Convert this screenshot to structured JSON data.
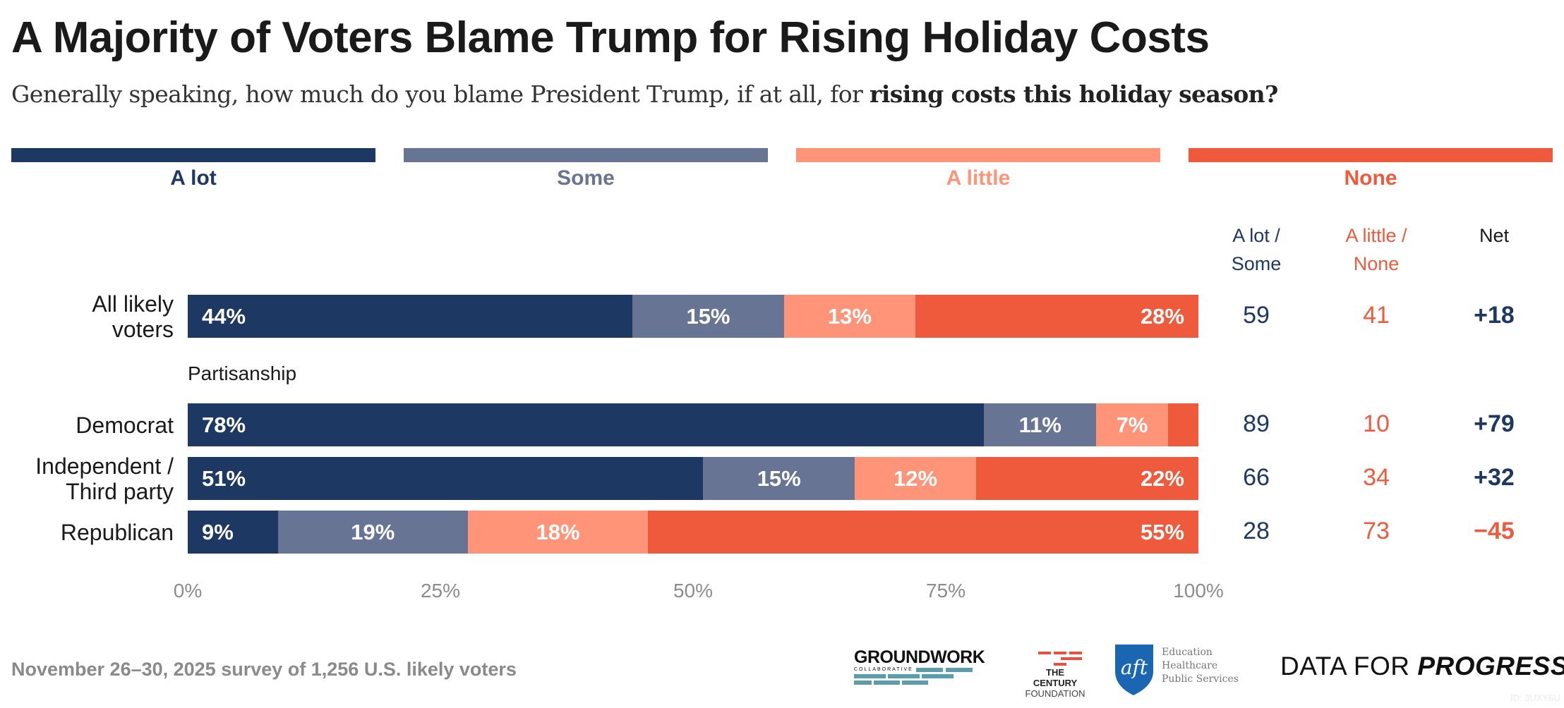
{
  "title": "A Majority of Voters Blame Trump for Rising Holiday Costs",
  "subtitle": {
    "plain": "Generally speaking, how much do you blame President Trump, if at all, for ",
    "bold": "rising costs this holiday season?"
  },
  "colors": {
    "a_lot": "#1e3864",
    "some": "#687494",
    "a_little": "#ff9478",
    "none": "#f05a3c",
    "net_positive": "#1e3864",
    "net_negative": "#f05a3c"
  },
  "legend": [
    {
      "label": "A lot",
      "color": "#1e3864"
    },
    {
      "label": "Some",
      "color": "#687494"
    },
    {
      "label": "A little",
      "color": "#ff9478"
    },
    {
      "label": "None",
      "color": "#f05a3c"
    }
  ],
  "column_headers": {
    "blame": {
      "line1": "A lot /",
      "line2": "Some"
    },
    "no_blame": {
      "line1": "A little /",
      "line2": "None"
    },
    "net": {
      "line1": "Net",
      "line2": ""
    }
  },
  "group_label": "Partisanship",
  "chart_data": {
    "type": "bar",
    "orientation": "horizontal",
    "stacked": true,
    "title": "A Majority of Voters Blame Trump for Rising Holiday Costs",
    "subtitle": "Generally speaking, how much do you blame President Trump, if at all, for rising costs this holiday season?",
    "categories": [
      "All likely voters",
      "Democrat",
      "Independent / Third party",
      "Republican"
    ],
    "category_lines": [
      [
        "All likely",
        "voters"
      ],
      [
        "Democrat"
      ],
      [
        "Independent /",
        "Third party"
      ],
      [
        "Republican"
      ]
    ],
    "series": [
      {
        "name": "A lot",
        "values": [
          44,
          78,
          51,
          9
        ],
        "labels": [
          "44%",
          "78%",
          "51%",
          "9%"
        ]
      },
      {
        "name": "Some",
        "values": [
          15,
          11,
          15,
          19
        ],
        "labels": [
          "15%",
          "11%",
          "15%",
          "19%"
        ]
      },
      {
        "name": "A little",
        "values": [
          13,
          7,
          12,
          18
        ],
        "labels": [
          "13%",
          "7%",
          "12%",
          "18%"
        ]
      },
      {
        "name": "None",
        "values": [
          28,
          3,
          22,
          55
        ],
        "labels": [
          "28%",
          "",
          "22%",
          "55%"
        ]
      }
    ],
    "summary": {
      "a_lot_some": [
        "59",
        "89",
        "66",
        "28"
      ],
      "a_little_none": [
        "41",
        "10",
        "34",
        "73"
      ],
      "net": [
        "+18",
        "+79",
        "+32",
        "−45"
      ]
    },
    "xlim": [
      0,
      100
    ],
    "xticks": [
      "0%",
      "25%",
      "50%",
      "75%",
      "100%"
    ],
    "xtick_values": [
      0,
      25,
      50,
      75,
      100
    ],
    "legend_position": "top",
    "grid": false
  },
  "footnote": "November 26–30, 2025 survey of 1,256 U.S. likely voters",
  "logos": {
    "groundwork": {
      "name": "GROUNDWORK",
      "sub": "COLLABORATIVE"
    },
    "century": {
      "line1": "THE CENTURY",
      "line2": "FOUNDATION"
    },
    "aft": {
      "mark": "aft",
      "lines": [
        "Education",
        "Healthcare",
        "Public Services"
      ]
    },
    "dfp": {
      "regular": "DATA FOR ",
      "bold": "PROGRESS"
    }
  },
  "watermark": "ID: 3UXY6U"
}
